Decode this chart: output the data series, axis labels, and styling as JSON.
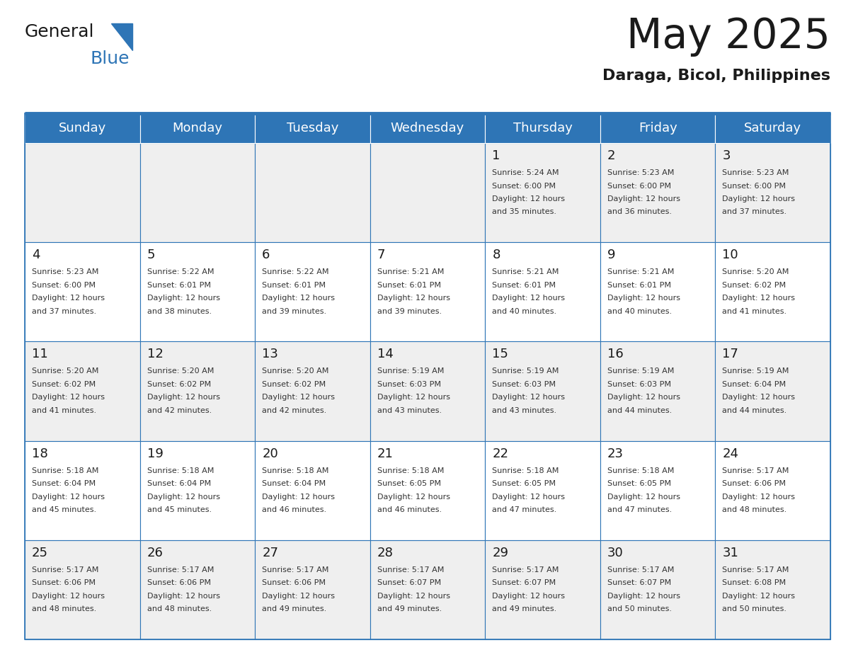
{
  "title": "May 2025",
  "subtitle": "Daraga, Bicol, Philippines",
  "days_of_week": [
    "Sunday",
    "Monday",
    "Tuesday",
    "Wednesday",
    "Thursday",
    "Friday",
    "Saturday"
  ],
  "header_bg": "#2e75b6",
  "header_text": "#ffffff",
  "row_bg_even": "#efefef",
  "row_bg_odd": "#ffffff",
  "cell_border": "#2e75b6",
  "day_num_color": "#1a1a1a",
  "text_color": "#333333",
  "logo_general_color": "#1a1a1a",
  "logo_blue_color": "#2e75b6",
  "weeks": [
    {
      "days": [
        {
          "date": "",
          "sunrise": "",
          "sunset": "",
          "daylight": ""
        },
        {
          "date": "",
          "sunrise": "",
          "sunset": "",
          "daylight": ""
        },
        {
          "date": "",
          "sunrise": "",
          "sunset": "",
          "daylight": ""
        },
        {
          "date": "",
          "sunrise": "",
          "sunset": "",
          "daylight": ""
        },
        {
          "date": "1",
          "sunrise": "5:24 AM",
          "sunset": "6:00 PM",
          "daylight": "and 35 minutes."
        },
        {
          "date": "2",
          "sunrise": "5:23 AM",
          "sunset": "6:00 PM",
          "daylight": "and 36 minutes."
        },
        {
          "date": "3",
          "sunrise": "5:23 AM",
          "sunset": "6:00 PM",
          "daylight": "and 37 minutes."
        }
      ]
    },
    {
      "days": [
        {
          "date": "4",
          "sunrise": "5:23 AM",
          "sunset": "6:00 PM",
          "daylight": "and 37 minutes."
        },
        {
          "date": "5",
          "sunrise": "5:22 AM",
          "sunset": "6:01 PM",
          "daylight": "and 38 minutes."
        },
        {
          "date": "6",
          "sunrise": "5:22 AM",
          "sunset": "6:01 PM",
          "daylight": "and 39 minutes."
        },
        {
          "date": "7",
          "sunrise": "5:21 AM",
          "sunset": "6:01 PM",
          "daylight": "and 39 minutes."
        },
        {
          "date": "8",
          "sunrise": "5:21 AM",
          "sunset": "6:01 PM",
          "daylight": "and 40 minutes."
        },
        {
          "date": "9",
          "sunrise": "5:21 AM",
          "sunset": "6:01 PM",
          "daylight": "and 40 minutes."
        },
        {
          "date": "10",
          "sunrise": "5:20 AM",
          "sunset": "6:02 PM",
          "daylight": "and 41 minutes."
        }
      ]
    },
    {
      "days": [
        {
          "date": "11",
          "sunrise": "5:20 AM",
          "sunset": "6:02 PM",
          "daylight": "and 41 minutes."
        },
        {
          "date": "12",
          "sunrise": "5:20 AM",
          "sunset": "6:02 PM",
          "daylight": "and 42 minutes."
        },
        {
          "date": "13",
          "sunrise": "5:20 AM",
          "sunset": "6:02 PM",
          "daylight": "and 42 minutes."
        },
        {
          "date": "14",
          "sunrise": "5:19 AM",
          "sunset": "6:03 PM",
          "daylight": "and 43 minutes."
        },
        {
          "date": "15",
          "sunrise": "5:19 AM",
          "sunset": "6:03 PM",
          "daylight": "and 43 minutes."
        },
        {
          "date": "16",
          "sunrise": "5:19 AM",
          "sunset": "6:03 PM",
          "daylight": "and 44 minutes."
        },
        {
          "date": "17",
          "sunrise": "5:19 AM",
          "sunset": "6:04 PM",
          "daylight": "and 44 minutes."
        }
      ]
    },
    {
      "days": [
        {
          "date": "18",
          "sunrise": "5:18 AM",
          "sunset": "6:04 PM",
          "daylight": "and 45 minutes."
        },
        {
          "date": "19",
          "sunrise": "5:18 AM",
          "sunset": "6:04 PM",
          "daylight": "and 45 minutes."
        },
        {
          "date": "20",
          "sunrise": "5:18 AM",
          "sunset": "6:04 PM",
          "daylight": "and 46 minutes."
        },
        {
          "date": "21",
          "sunrise": "5:18 AM",
          "sunset": "6:05 PM",
          "daylight": "and 46 minutes."
        },
        {
          "date": "22",
          "sunrise": "5:18 AM",
          "sunset": "6:05 PM",
          "daylight": "and 47 minutes."
        },
        {
          "date": "23",
          "sunrise": "5:18 AM",
          "sunset": "6:05 PM",
          "daylight": "and 47 minutes."
        },
        {
          "date": "24",
          "sunrise": "5:17 AM",
          "sunset": "6:06 PM",
          "daylight": "and 48 minutes."
        }
      ]
    },
    {
      "days": [
        {
          "date": "25",
          "sunrise": "5:17 AM",
          "sunset": "6:06 PM",
          "daylight": "and 48 minutes."
        },
        {
          "date": "26",
          "sunrise": "5:17 AM",
          "sunset": "6:06 PM",
          "daylight": "and 48 minutes."
        },
        {
          "date": "27",
          "sunrise": "5:17 AM",
          "sunset": "6:06 PM",
          "daylight": "and 49 minutes."
        },
        {
          "date": "28",
          "sunrise": "5:17 AM",
          "sunset": "6:07 PM",
          "daylight": "and 49 minutes."
        },
        {
          "date": "29",
          "sunrise": "5:17 AM",
          "sunset": "6:07 PM",
          "daylight": "and 49 minutes."
        },
        {
          "date": "30",
          "sunrise": "5:17 AM",
          "sunset": "6:07 PM",
          "daylight": "and 50 minutes."
        },
        {
          "date": "31",
          "sunrise": "5:17 AM",
          "sunset": "6:08 PM",
          "daylight": "and 50 minutes."
        }
      ]
    }
  ]
}
